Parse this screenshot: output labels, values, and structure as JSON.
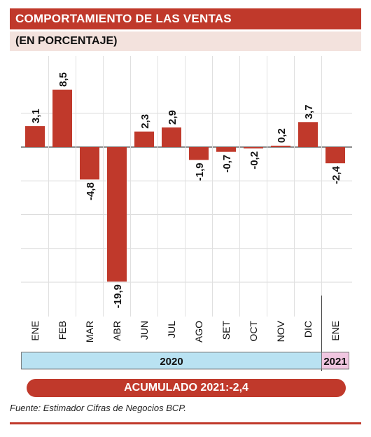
{
  "header": {
    "title": "COMPORTAMIENTO DE LAS VENTAS",
    "subtitle": "(EN PORCENTAJE)"
  },
  "chart_data": {
    "type": "bar",
    "categories": [
      "ENE",
      "FEB",
      "MAR",
      "ABR",
      "JUN",
      "JUL",
      "AGO",
      "SET",
      "OCT",
      "NOV",
      "DIC",
      "ENE"
    ],
    "values": [
      3.1,
      8.5,
      -4.8,
      -19.9,
      2.3,
      2.9,
      -1.9,
      -0.7,
      -0.2,
      0.2,
      3.7,
      -2.4
    ],
    "value_labels": [
      "3,1",
      "8,5",
      "-4,8",
      "-19,9",
      "2,3",
      "2,9",
      "-1,9",
      "-0,7",
      "-0,2",
      "0,2",
      "3,7",
      "-2,4"
    ],
    "years": [
      {
        "label": "2020",
        "span": 11,
        "color": "#b9e2f2"
      },
      {
        "label": "2021",
        "span": 1,
        "color": "#f0c6e0"
      }
    ],
    "bar_color": "#c0392b",
    "ylim": [
      -20,
      10
    ],
    "grid": true
  },
  "footer": {
    "summary": "ACUMULADO 2021:-2,4",
    "source": "Fuente: Estimador Cifras de Negocios BCP."
  }
}
